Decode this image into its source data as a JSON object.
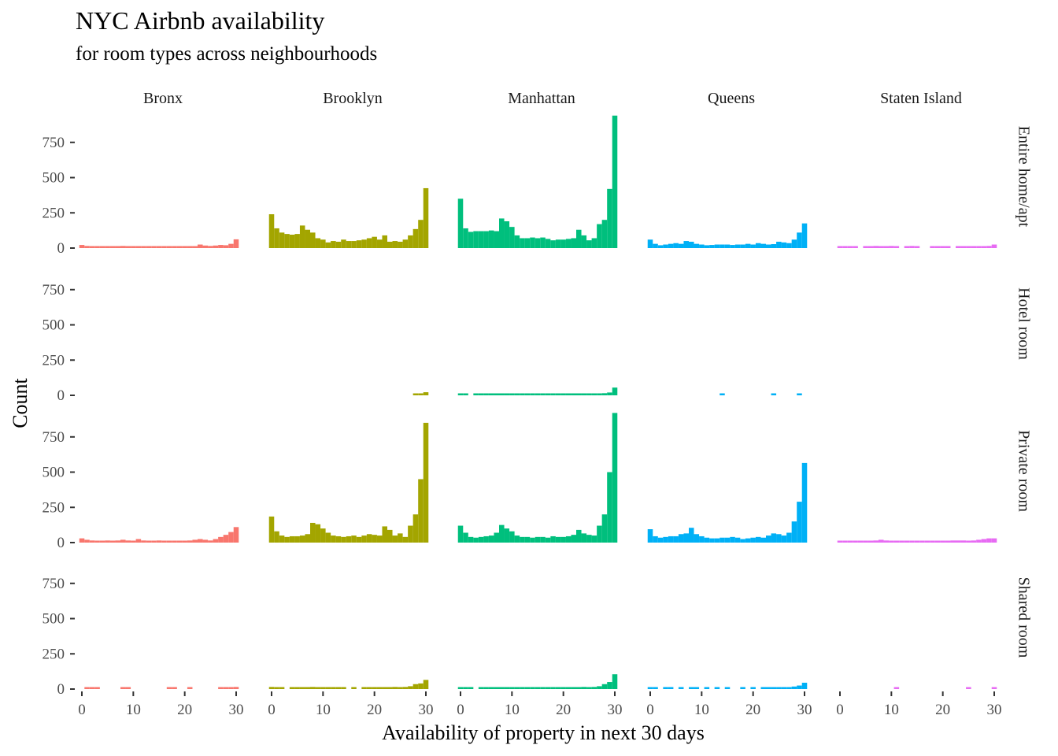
{
  "chart_data": {
    "type": "bar",
    "title": "NYC Airbnb availability",
    "subtitle": "for room types across neighbourhoods",
    "xlabel": "Availability of property in next 30 days",
    "ylabel": "Count",
    "xlim": [
      0,
      30
    ],
    "ylim": [
      0,
      950
    ],
    "x_ticks": [
      0,
      10,
      20,
      30
    ],
    "y_ticks": [
      0,
      250,
      500,
      750
    ],
    "grid": false,
    "legend": "none",
    "bin_width": 1,
    "bin_centers": [
      0,
      1,
      2,
      3,
      4,
      5,
      6,
      7,
      8,
      9,
      10,
      11,
      12,
      13,
      14,
      15,
      16,
      17,
      18,
      19,
      20,
      21,
      22,
      23,
      24,
      25,
      26,
      27,
      28,
      29,
      30
    ],
    "columns": [
      {
        "name": "Bronx",
        "color": "#F8766D"
      },
      {
        "name": "Brooklyn",
        "color": "#A3A500"
      },
      {
        "name": "Manhattan",
        "color": "#00BF7D"
      },
      {
        "name": "Queens",
        "color": "#00B0F6"
      },
      {
        "name": "Staten Island",
        "color": "#E76BF3"
      }
    ],
    "rows": [
      {
        "name": "Entire home/apt"
      },
      {
        "name": "Hotel room"
      },
      {
        "name": "Private room"
      },
      {
        "name": "Shared room"
      }
    ],
    "counts": [
      [
        [
          22,
          15,
          12,
          10,
          10,
          10,
          10,
          12,
          15,
          13,
          12,
          10,
          10,
          12,
          10,
          10,
          10,
          10,
          12,
          10,
          10,
          12,
          14,
          25,
          18,
          15,
          18,
          22,
          20,
          30,
          62
        ],
        [
          240,
          140,
          110,
          100,
          95,
          100,
          160,
          130,
          110,
          70,
          60,
          40,
          50,
          45,
          60,
          50,
          50,
          55,
          60,
          70,
          80,
          60,
          90,
          45,
          50,
          45,
          60,
          90,
          135,
          200,
          425
        ],
        [
          350,
          140,
          115,
          120,
          120,
          120,
          125,
          120,
          210,
          190,
          150,
          90,
          70,
          70,
          75,
          70,
          75,
          65,
          55,
          60,
          60,
          65,
          70,
          130,
          90,
          55,
          70,
          170,
          200,
          420,
          940
        ],
        [
          60,
          30,
          20,
          25,
          30,
          35,
          30,
          50,
          45,
          30,
          25,
          20,
          22,
          25,
          25,
          25,
          22,
          25,
          25,
          30,
          25,
          35,
          30,
          25,
          28,
          45,
          40,
          35,
          60,
          110,
          175
        ],
        [
          10,
          5,
          5,
          10,
          0,
          10,
          10,
          15,
          10,
          10,
          15,
          10,
          0,
          10,
          15,
          10,
          0,
          0,
          10,
          5,
          5,
          10,
          0,
          10,
          5,
          10,
          10,
          10,
          10,
          15,
          25
        ]
      ],
      [
        [
          0,
          0,
          0,
          0,
          0,
          0,
          0,
          0,
          0,
          0,
          0,
          0,
          0,
          0,
          0,
          0,
          0,
          0,
          0,
          0,
          0,
          0,
          0,
          0,
          0,
          0,
          0,
          0,
          0,
          0,
          0
        ],
        [
          0,
          0,
          0,
          0,
          0,
          0,
          0,
          0,
          0,
          0,
          0,
          0,
          0,
          0,
          0,
          0,
          0,
          0,
          0,
          0,
          0,
          0,
          0,
          0,
          0,
          0,
          0,
          0,
          10,
          8,
          22
        ],
        [
          12,
          8,
          0,
          6,
          5,
          6,
          5,
          5,
          6,
          5,
          6,
          5,
          8,
          6,
          5,
          8,
          6,
          5,
          5,
          6,
          5,
          6,
          5,
          8,
          6,
          5,
          6,
          8,
          15,
          20,
          55
        ],
        [
          0,
          0,
          0,
          0,
          0,
          0,
          0,
          0,
          0,
          0,
          0,
          0,
          0,
          0,
          8,
          0,
          0,
          0,
          0,
          0,
          0,
          0,
          0,
          0,
          5,
          0,
          0,
          0,
          0,
          5,
          0
        ],
        [
          0,
          0,
          0,
          0,
          0,
          0,
          0,
          0,
          0,
          0,
          0,
          0,
          0,
          0,
          0,
          0,
          0,
          0,
          0,
          0,
          0,
          0,
          0,
          0,
          0,
          0,
          0,
          0,
          0,
          0,
          0
        ]
      ],
      [
        [
          30,
          20,
          15,
          10,
          10,
          15,
          10,
          15,
          20,
          15,
          10,
          25,
          15,
          12,
          10,
          15,
          10,
          10,
          5,
          10,
          12,
          15,
          20,
          25,
          20,
          15,
          25,
          40,
          55,
          75,
          110
        ],
        [
          185,
          80,
          50,
          40,
          45,
          45,
          50,
          60,
          140,
          130,
          100,
          70,
          50,
          45,
          40,
          45,
          50,
          40,
          50,
          60,
          55,
          50,
          115,
          90,
          50,
          65,
          40,
          120,
          200,
          450,
          850
        ],
        [
          120,
          70,
          40,
          35,
          40,
          45,
          50,
          70,
          125,
          100,
          80,
          50,
          40,
          40,
          35,
          40,
          40,
          35,
          45,
          40,
          40,
          45,
          55,
          90,
          65,
          55,
          50,
          120,
          200,
          500,
          920
        ],
        [
          95,
          45,
          35,
          40,
          45,
          45,
          60,
          65,
          105,
          60,
          45,
          35,
          30,
          30,
          35,
          35,
          40,
          35,
          25,
          30,
          35,
          40,
          35,
          50,
          65,
          60,
          50,
          70,
          150,
          290,
          565
        ],
        [
          10,
          5,
          10,
          5,
          5,
          10,
          10,
          15,
          20,
          15,
          10,
          10,
          5,
          5,
          5,
          10,
          5,
          5,
          5,
          10,
          5,
          10,
          15,
          15,
          15,
          10,
          15,
          20,
          25,
          30,
          30
        ]
      ],
      [
        [
          0,
          10,
          10,
          10,
          0,
          0,
          0,
          0,
          8,
          10,
          0,
          0,
          0,
          0,
          0,
          0,
          0,
          8,
          6,
          0,
          0,
          8,
          0,
          0,
          0,
          0,
          0,
          8,
          8,
          12,
          15
        ],
        [
          15,
          10,
          8,
          0,
          5,
          5,
          8,
          10,
          15,
          12,
          10,
          8,
          5,
          5,
          8,
          0,
          6,
          0,
          5,
          8,
          10,
          8,
          8,
          10,
          15,
          12,
          15,
          20,
          35,
          40,
          65
        ],
        [
          12,
          10,
          8,
          0,
          8,
          6,
          8,
          10,
          12,
          10,
          8,
          5,
          5,
          6,
          8,
          5,
          6,
          5,
          8,
          6,
          8,
          10,
          10,
          12,
          15,
          12,
          15,
          20,
          35,
          50,
          105
        ],
        [
          10,
          6,
          0,
          8,
          6,
          0,
          8,
          0,
          6,
          5,
          0,
          5,
          0,
          6,
          0,
          5,
          0,
          0,
          5,
          0,
          6,
          0,
          8,
          10,
          10,
          8,
          10,
          12,
          18,
          25,
          45
        ],
        [
          0,
          0,
          0,
          0,
          0,
          0,
          0,
          0,
          0,
          0,
          0,
          8,
          0,
          0,
          0,
          0,
          0,
          0,
          0,
          0,
          0,
          0,
          0,
          0,
          0,
          6,
          0,
          0,
          0,
          0,
          8
        ]
      ]
    ]
  }
}
